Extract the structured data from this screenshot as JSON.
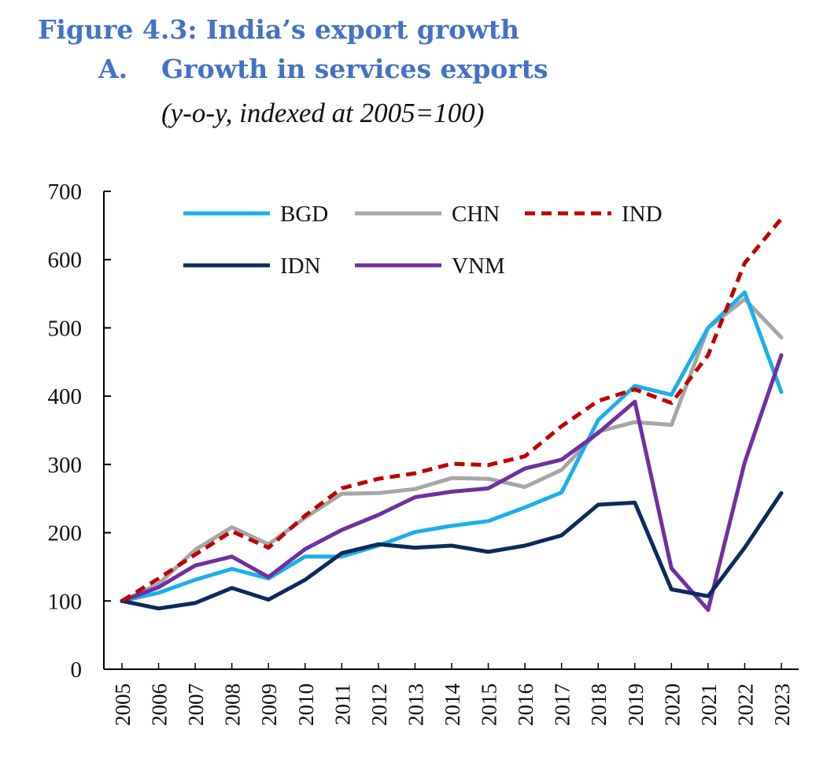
{
  "header": {
    "figure_title": "Figure 4.3: India’s export growth",
    "panel_letter": "A.",
    "panel_title": "Growth in services exports",
    "subtitle": "(y-o-y, indexed at 2005=100)"
  },
  "chart_data": {
    "type": "line",
    "title": "Growth in services exports",
    "subtitle": "(y-o-y, indexed at 2005=100)",
    "xlabel": "",
    "ylabel": "",
    "ylim": [
      0,
      700
    ],
    "yticks": [
      0,
      100,
      200,
      300,
      400,
      500,
      600,
      700
    ],
    "grid": false,
    "legend_position": "top",
    "categories": [
      "2005",
      "2006",
      "2007",
      "2008",
      "2009",
      "2010",
      "2011",
      "2012",
      "2013",
      "2014",
      "2015",
      "2016",
      "2017",
      "2018",
      "2019",
      "2020",
      "2021",
      "2022",
      "2023"
    ],
    "series": [
      {
        "name": "BGD",
        "color": "#1ab0e8",
        "dash": "solid",
        "values": [
          100,
          112,
          131,
          147,
          133,
          165,
          165,
          181,
          201,
          210,
          217,
          237,
          259,
          365,
          415,
          402,
          500,
          552,
          406
        ]
      },
      {
        "name": "CHN",
        "color": "#a6a6a6",
        "dash": "solid",
        "values": [
          100,
          125,
          175,
          208,
          183,
          222,
          257,
          258,
          264,
          280,
          279,
          267,
          292,
          348,
          362,
          358,
          500,
          542,
          486
        ]
      },
      {
        "name": "IND",
        "color": "#c00000",
        "dash": "dashed",
        "values": [
          100,
          133,
          168,
          202,
          178,
          225,
          265,
          279,
          287,
          301,
          299,
          312,
          356,
          393,
          410,
          390,
          460,
          595,
          660
        ]
      },
      {
        "name": "IDN",
        "color": "#0d2a5c",
        "dash": "solid",
        "values": [
          100,
          89,
          97,
          119,
          102,
          131,
          170,
          183,
          178,
          181,
          172,
          181,
          196,
          241,
          244,
          117,
          107,
          178,
          258
        ]
      },
      {
        "name": "VNM",
        "color": "#7030a0",
        "dash": "solid",
        "values": [
          100,
          120,
          152,
          165,
          135,
          176,
          204,
          226,
          252,
          260,
          265,
          294,
          307,
          346,
          392,
          148,
          87,
          303,
          460
        ]
      }
    ]
  }
}
